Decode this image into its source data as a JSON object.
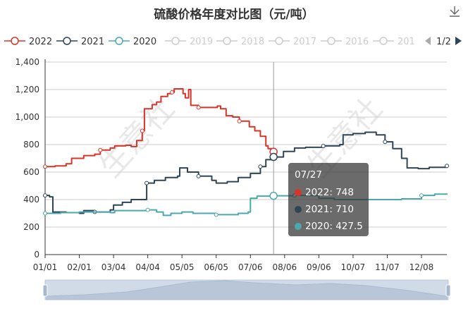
{
  "title": "硫酸价格年度对比图（元/吨）",
  "toolbar": {
    "download_icon": "download-icon"
  },
  "legend": {
    "items": [
      {
        "label": "2022",
        "color": "#d9342b",
        "active": true
      },
      {
        "label": "2021",
        "color": "#2e4555",
        "active": true
      },
      {
        "label": "2020",
        "color": "#4ba8ad",
        "active": true
      },
      {
        "label": "2019",
        "color": "#cccccc",
        "active": false
      },
      {
        "label": "2018",
        "color": "#cccccc",
        "active": false
      },
      {
        "label": "2017",
        "color": "#cccccc",
        "active": false
      },
      {
        "label": "2016",
        "color": "#cccccc",
        "active": false
      },
      {
        "label": "201",
        "color": "#cccccc",
        "active": false
      }
    ],
    "page": "1/2",
    "prev_icon": "triangle-left-icon",
    "next_icon": "triangle-right-icon"
  },
  "watermark": "生意社",
  "tooltip": {
    "title": "07/27",
    "rows": [
      {
        "label": "2022: 748",
        "color": "#d9342b"
      },
      {
        "label": "2021: 710",
        "color": "#2e4555"
      },
      {
        "label": "2020: 427.5",
        "color": "#4ba8ad"
      }
    ]
  },
  "chart_data": {
    "type": "line",
    "title": "硫酸价格年度对比图（元/吨）",
    "x_ticks": [
      "01/01",
      "02/01",
      "03/04",
      "04/04",
      "05/05",
      "06/05",
      "07/06",
      "08/06",
      "09/06",
      "10/07",
      "11/07",
      "12/08"
    ],
    "x_range_days": [
      0,
      364
    ],
    "ylim": [
      0,
      1400
    ],
    "y_ticks": [
      0,
      200,
      400,
      600,
      800,
      1000,
      1200,
      1400
    ],
    "y_tick_labels": [
      "0",
      "200",
      "400",
      "600",
      "800",
      "1,000",
      "1,200",
      "1,400"
    ],
    "grid": true,
    "legend_position": "top",
    "crosshair_date": "07/27",
    "series": [
      {
        "name": "2022",
        "color": "#d9342b",
        "points": [
          [
            "01/01",
            640
          ],
          [
            "01/10",
            645
          ],
          [
            "01/20",
            660
          ],
          [
            "01/25",
            700
          ],
          [
            "02/05",
            720
          ],
          [
            "02/15",
            730
          ],
          [
            "02/20",
            760
          ],
          [
            "03/01",
            775
          ],
          [
            "03/05",
            790
          ],
          [
            "03/15",
            795
          ],
          [
            "03/20",
            785
          ],
          [
            "03/25",
            830
          ],
          [
            "03/30",
            900
          ],
          [
            "04/01",
            1060
          ],
          [
            "04/08",
            1090
          ],
          [
            "04/12",
            1110
          ],
          [
            "04/16",
            1150
          ],
          [
            "04/22",
            1170
          ],
          [
            "04/26",
            1180
          ],
          [
            "04/28",
            1205
          ],
          [
            "05/06",
            1170
          ],
          [
            "05/08",
            1140
          ],
          [
            "05/11",
            1200
          ],
          [
            "05/13",
            1085
          ],
          [
            "05/20",
            1070
          ],
          [
            "06/03",
            1070
          ],
          [
            "06/06",
            1080
          ],
          [
            "06/09",
            1060
          ],
          [
            "06/14",
            1010
          ],
          [
            "06/20",
            1000
          ],
          [
            "06/26",
            970
          ],
          [
            "07/05",
            930
          ],
          [
            "07/10",
            900
          ],
          [
            "07/15",
            860
          ],
          [
            "07/20",
            790
          ],
          [
            "07/22",
            770
          ],
          [
            "07/27",
            748
          ]
        ]
      },
      {
        "name": "2021",
        "color": "#2e4555",
        "points": [
          [
            "01/01",
            430
          ],
          [
            "01/05",
            420
          ],
          [
            "01/08",
            310
          ],
          [
            "01/20",
            305
          ],
          [
            "02/01",
            300
          ],
          [
            "02/05",
            320
          ],
          [
            "02/15",
            310
          ],
          [
            "03/01",
            325
          ],
          [
            "03/04",
            360
          ],
          [
            "03/12",
            380
          ],
          [
            "03/20",
            400
          ],
          [
            "04/01",
            400
          ],
          [
            "04/03",
            520
          ],
          [
            "04/10",
            540
          ],
          [
            "04/20",
            560
          ],
          [
            "05/01",
            570
          ],
          [
            "05/03",
            630
          ],
          [
            "05/10",
            600
          ],
          [
            "05/20",
            570
          ],
          [
            "06/01",
            540
          ],
          [
            "06/05",
            520
          ],
          [
            "06/15",
            530
          ],
          [
            "06/25",
            560
          ],
          [
            "07/06",
            590
          ],
          [
            "07/15",
            640
          ],
          [
            "07/20",
            690
          ],
          [
            "07/27",
            710
          ],
          [
            "08/05",
            750
          ],
          [
            "08/15",
            775
          ],
          [
            "08/25",
            780
          ],
          [
            "09/10",
            790
          ],
          [
            "09/25",
            800
          ],
          [
            "09/28",
            870
          ],
          [
            "10/07",
            880
          ],
          [
            "10/18",
            890
          ],
          [
            "10/28",
            870
          ],
          [
            "11/05",
            820
          ],
          [
            "11/12",
            770
          ],
          [
            "11/20",
            700
          ],
          [
            "11/25",
            630
          ],
          [
            "12/05",
            625
          ],
          [
            "12/15",
            635
          ],
          [
            "12/31",
            645
          ]
        ]
      },
      {
        "name": "2020",
        "color": "#4ba8ad",
        "points": [
          [
            "01/01",
            300
          ],
          [
            "01/15",
            305
          ],
          [
            "02/01",
            310
          ],
          [
            "02/15",
            310
          ],
          [
            "03/01",
            305
          ],
          [
            "03/05",
            320
          ],
          [
            "04/04",
            325
          ],
          [
            "04/12",
            310
          ],
          [
            "04/18",
            285
          ],
          [
            "04/25",
            300
          ],
          [
            "05/05",
            310
          ],
          [
            "05/15",
            300
          ],
          [
            "06/05",
            290
          ],
          [
            "06/25",
            300
          ],
          [
            "07/04",
            310
          ],
          [
            "07/06",
            410
          ],
          [
            "07/12",
            425
          ],
          [
            "07/27",
            427.5
          ],
          [
            "08/15",
            430
          ],
          [
            "09/06",
            410
          ],
          [
            "09/20",
            400
          ],
          [
            "10/07",
            400
          ],
          [
            "11/07",
            400
          ],
          [
            "11/20",
            405
          ],
          [
            "12/08",
            430
          ],
          [
            "12/20",
            440
          ],
          [
            "12/31",
            435
          ]
        ]
      }
    ]
  }
}
